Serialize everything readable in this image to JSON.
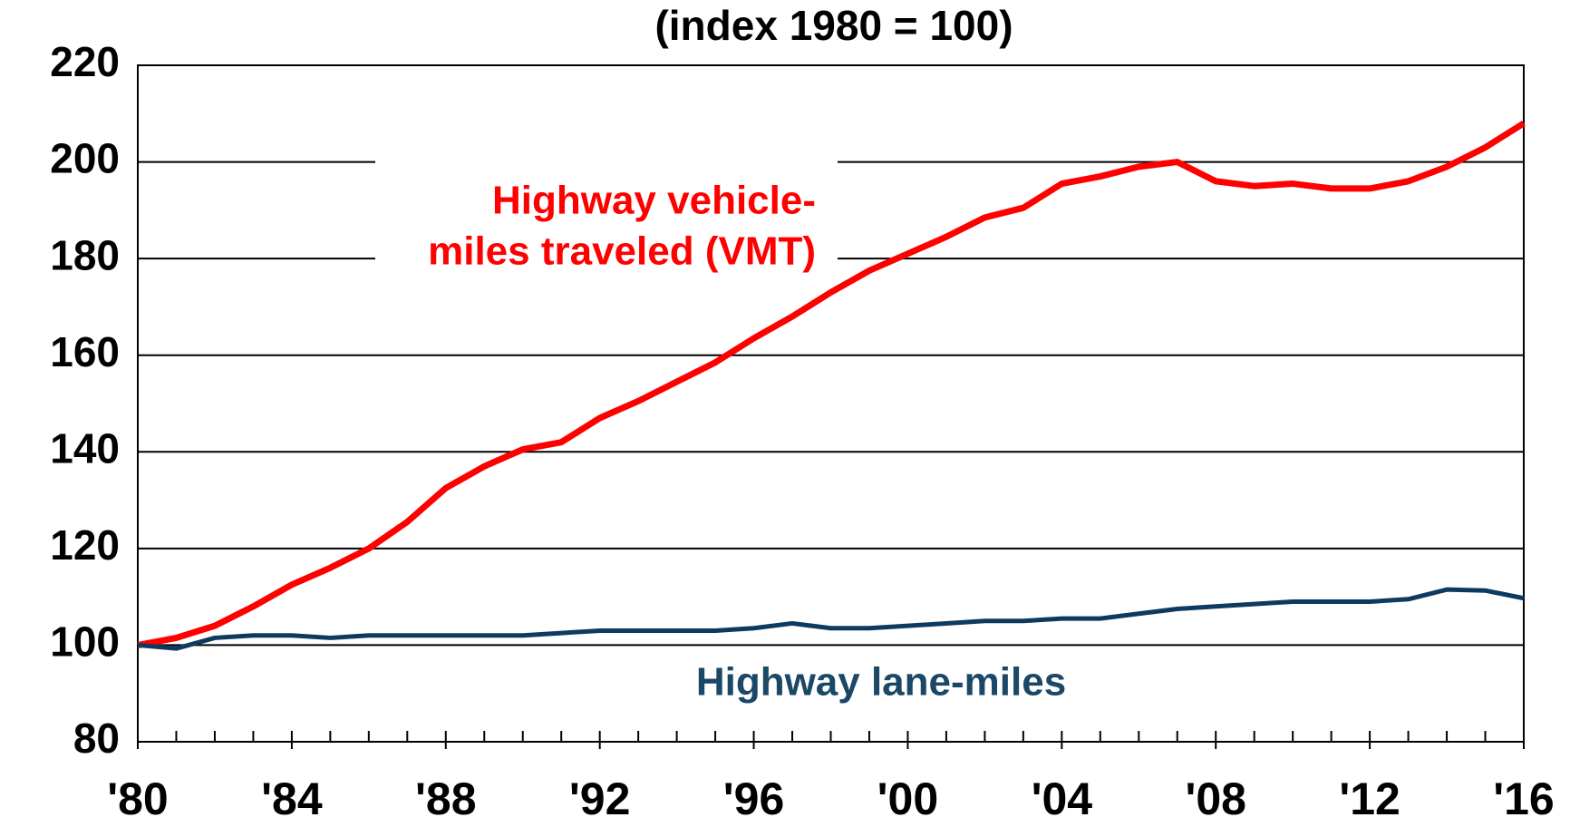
{
  "chart_data": {
    "type": "line",
    "title": "(index 1980 = 100)",
    "x": [
      1980,
      1981,
      1982,
      1983,
      1984,
      1985,
      1986,
      1987,
      1988,
      1989,
      1990,
      1991,
      1992,
      1993,
      1994,
      1995,
      1996,
      1997,
      1998,
      1999,
      2000,
      2001,
      2002,
      2003,
      2004,
      2005,
      2006,
      2007,
      2008,
      2009,
      2010,
      2011,
      2012,
      2013,
      2014,
      2015,
      2016
    ],
    "series": [
      {
        "name": "Highway vehicle-miles traveled (VMT)",
        "color": "#ff0000",
        "values": [
          100,
          101.5,
          104,
          108,
          112.5,
          116,
          120,
          125.5,
          132.5,
          137,
          140.5,
          142,
          147,
          150.5,
          154.5,
          158.5,
          163.5,
          168,
          173,
          177.5,
          181,
          184.5,
          188.5,
          190.5,
          195.5,
          197,
          199,
          200,
          196,
          195,
          195.5,
          194.5,
          194.5,
          196,
          199,
          203,
          208
        ]
      },
      {
        "name": "Highway lane-miles",
        "color": "#0e3a5f",
        "values": [
          100,
          99.3,
          101.5,
          102,
          102,
          101.5,
          102,
          102,
          102,
          102,
          102,
          102.5,
          103,
          103,
          103,
          103,
          103.5,
          104.5,
          103.5,
          103.5,
          104,
          104.5,
          105,
          105,
          105.5,
          105.5,
          106.5,
          107.5,
          108,
          108.5,
          109,
          109,
          109,
          109.5,
          111.5,
          111.3,
          109.7
        ]
      }
    ],
    "annotations": [
      {
        "lines": [
          "Highway vehicle-",
          "miles traveled (VMT)"
        ],
        "color": "#ff0000"
      },
      {
        "lines": [
          "Highway lane-miles"
        ],
        "color": "#1a4866"
      }
    ],
    "xlim": [
      1980,
      2016
    ],
    "xticks": [
      {
        "value": 1980,
        "label": "'80"
      },
      {
        "value": 1984,
        "label": "'84"
      },
      {
        "value": 1988,
        "label": "'88"
      },
      {
        "value": 1992,
        "label": "'92"
      },
      {
        "value": 1996,
        "label": "'96"
      },
      {
        "value": 2000,
        "label": "'00"
      },
      {
        "value": 2004,
        "label": "'04"
      },
      {
        "value": 2008,
        "label": "'08"
      },
      {
        "value": 2012,
        "label": "'12"
      },
      {
        "value": 2016,
        "label": "'16"
      }
    ],
    "ylim": [
      80,
      220
    ],
    "yticks": [
      80,
      100,
      120,
      140,
      160,
      180,
      200,
      220
    ],
    "grid": true
  }
}
